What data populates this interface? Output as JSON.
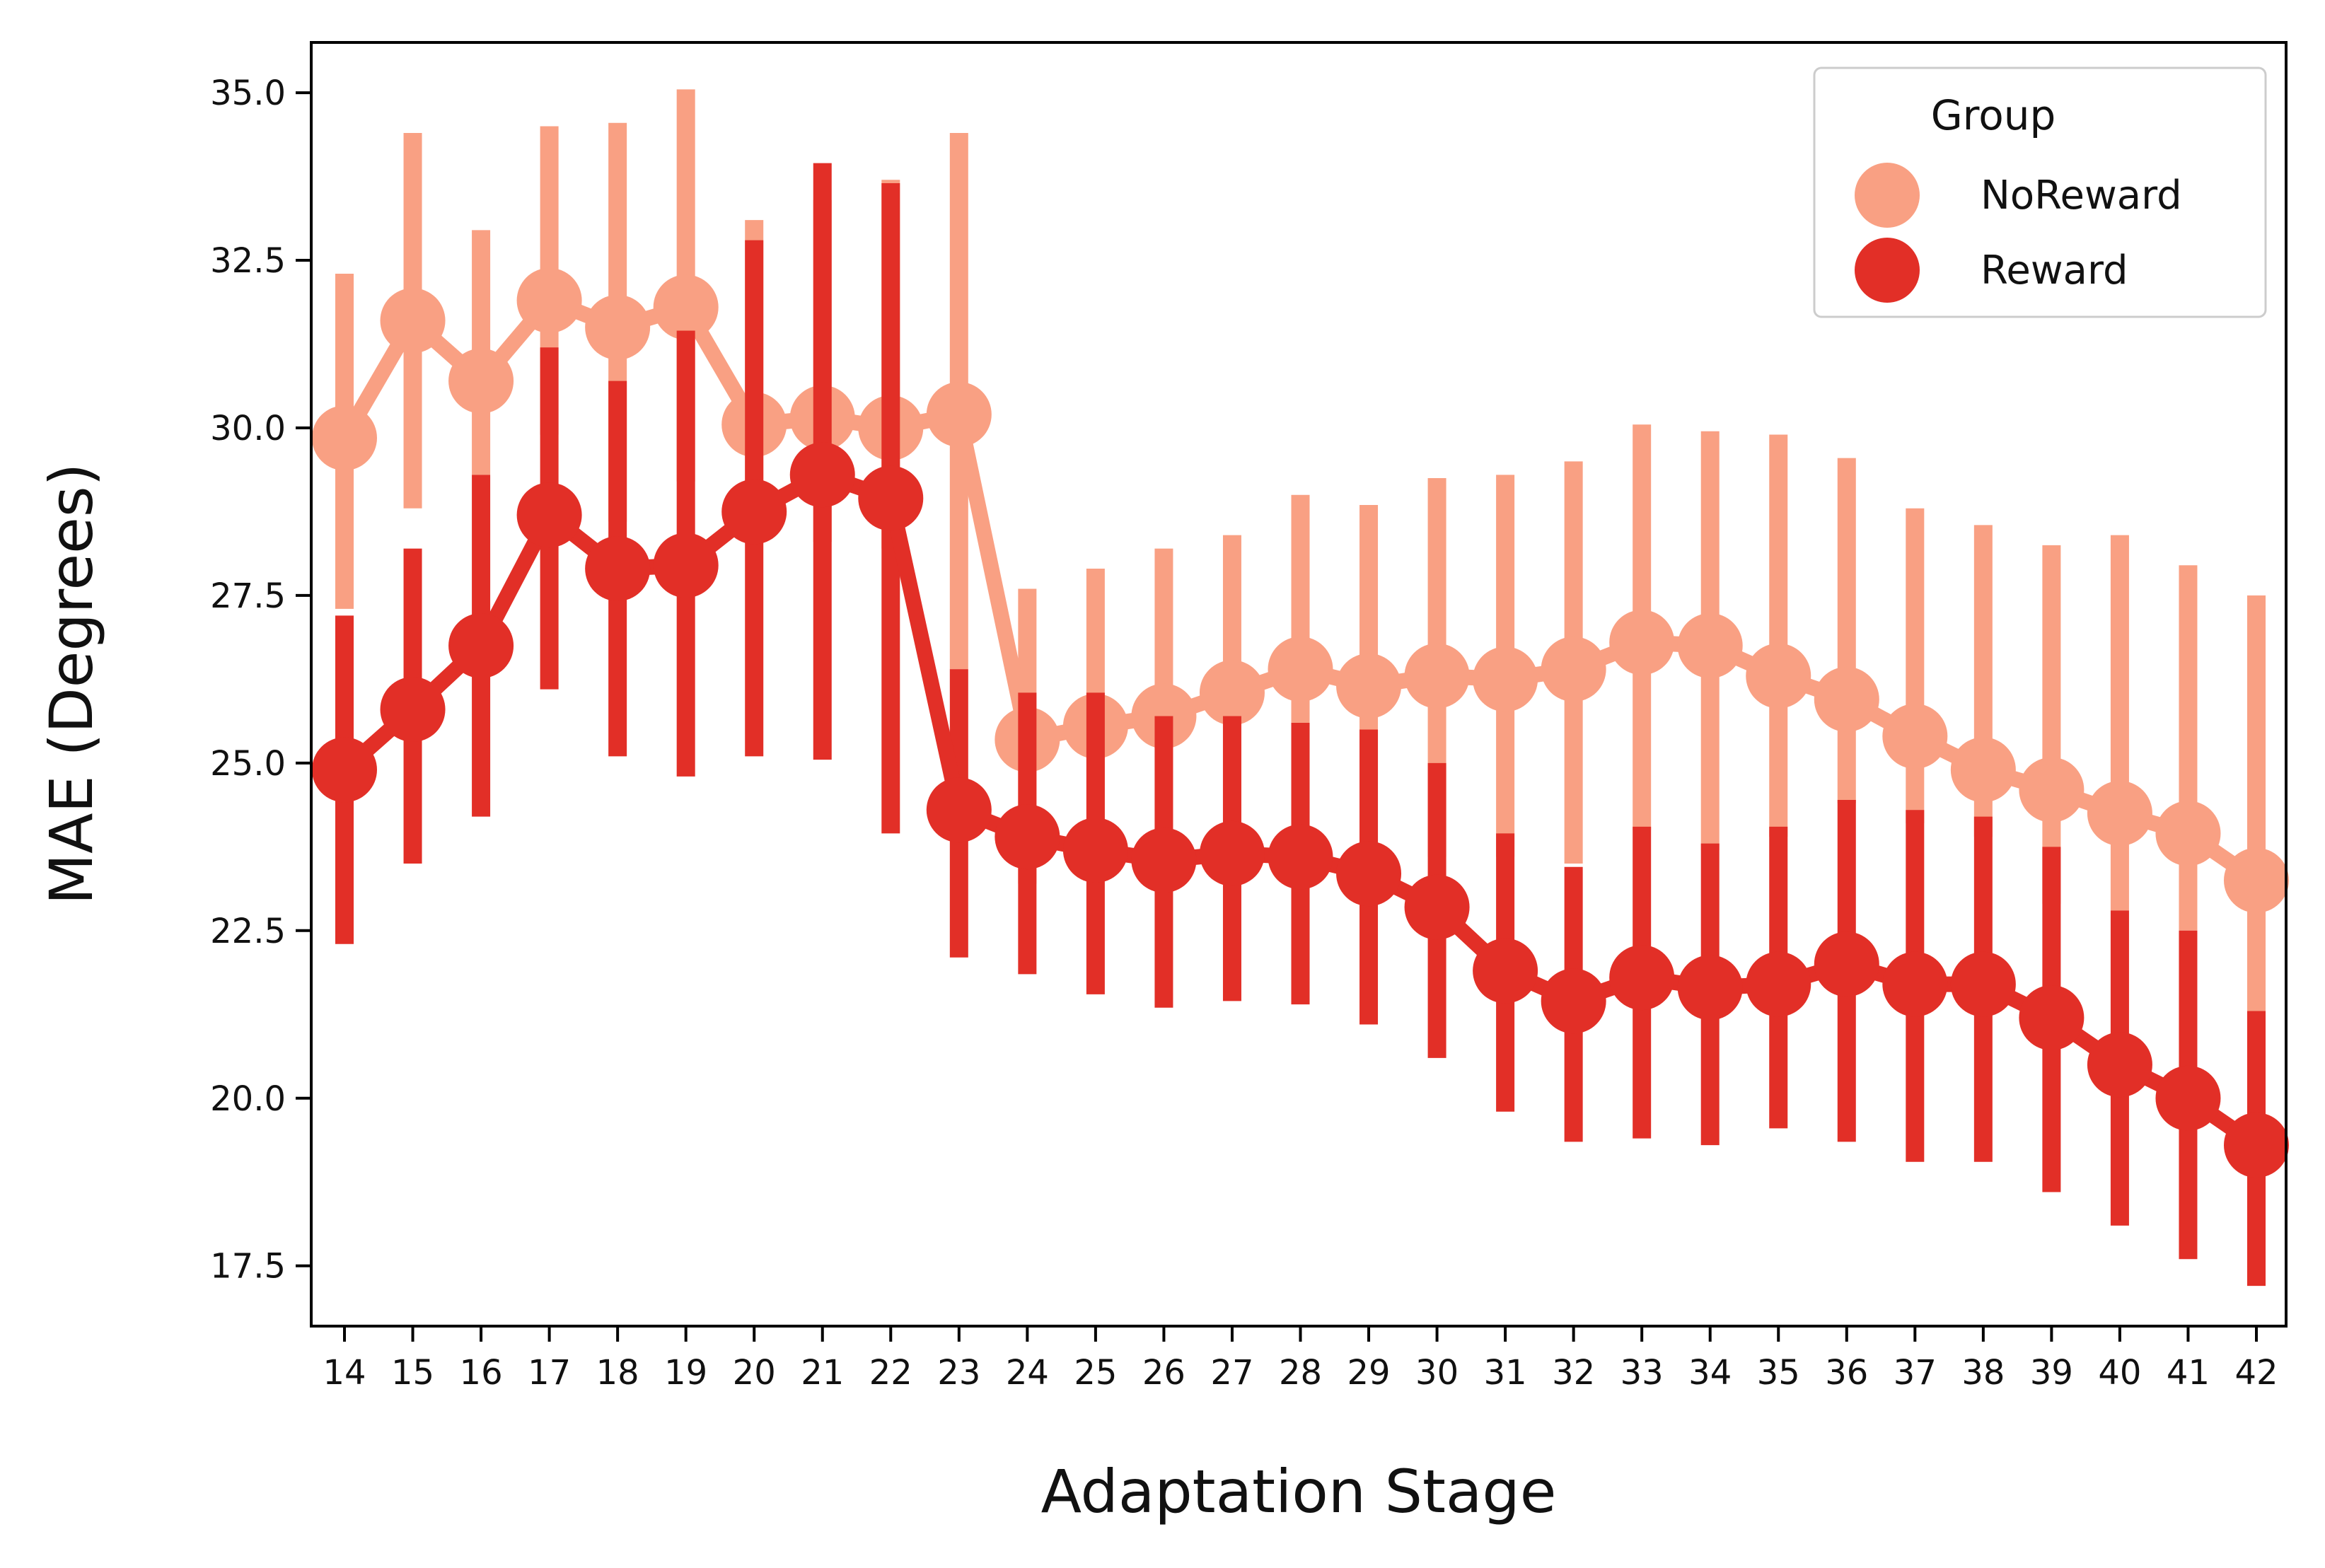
{
  "chart_data": {
    "type": "line",
    "subtype": "pointplot-with-error-bars",
    "xlabel": "Adaptation Stage",
    "ylabel": "MAE (Degrees)",
    "categories": [
      "14",
      "15",
      "16",
      "17",
      "18",
      "19",
      "20",
      "21",
      "22",
      "23",
      "24",
      "25",
      "26",
      "27",
      "28",
      "29",
      "30",
      "31",
      "32",
      "33",
      "34",
      "35",
      "36",
      "37",
      "38",
      "39",
      "40",
      "41",
      "42"
    ],
    "ylim": [
      16.6,
      35.75
    ],
    "yticks": [
      "17.5",
      "20.0",
      "22.5",
      "25.0",
      "27.5",
      "30.0",
      "32.5",
      "35.0"
    ],
    "grid": false,
    "legend": {
      "title": "Group",
      "placement": "top-right",
      "entries": [
        "NoReward",
        "Reward"
      ]
    },
    "series": [
      {
        "name": "NoReward",
        "color": "#f9a083",
        "values": [
          29.85,
          31.6,
          30.7,
          31.9,
          31.5,
          31.8,
          30.05,
          30.15,
          30.0,
          30.2,
          25.35,
          25.55,
          25.7,
          26.05,
          26.4,
          26.15,
          26.3,
          26.25,
          26.4,
          26.8,
          26.75,
          26.3,
          25.95,
          25.4,
          24.9,
          24.6,
          24.25,
          23.95,
          23.25
        ],
        "err_low": [
          27.3,
          28.8,
          29.3,
          29.9,
          28.6,
          29.2,
          28.5,
          28.3,
          28.2,
          26.4,
          23.2,
          23.4,
          23.4,
          23.6,
          23.9,
          23.8,
          23.6,
          23.6,
          23.5,
          24.0,
          23.7,
          23.9,
          24.4,
          24.1,
          23.9,
          22.9,
          22.8,
          22.5,
          21.3
        ],
        "err_high": [
          32.3,
          34.4,
          32.95,
          34.5,
          34.55,
          35.05,
          33.1,
          33.4,
          33.7,
          34.4,
          27.6,
          27.9,
          28.2,
          28.4,
          29.0,
          28.85,
          29.25,
          29.3,
          29.5,
          30.05,
          29.95,
          29.9,
          29.55,
          28.8,
          28.55,
          28.25,
          28.4,
          27.95,
          27.5
        ]
      },
      {
        "name": "Reward",
        "color": "#e22f27",
        "values": [
          24.9,
          25.8,
          26.75,
          28.7,
          27.9,
          27.95,
          28.75,
          29.3,
          28.95,
          24.3,
          23.9,
          23.7,
          23.55,
          23.65,
          23.6,
          23.35,
          22.85,
          21.9,
          21.45,
          21.8,
          21.65,
          21.7,
          22.0,
          21.7,
          21.7,
          21.2,
          20.5,
          20.0,
          19.3
        ],
        "err_low": [
          22.3,
          23.5,
          24.2,
          26.1,
          25.1,
          24.8,
          25.1,
          25.05,
          23.95,
          22.1,
          21.85,
          21.55,
          21.35,
          21.45,
          21.4,
          21.1,
          20.6,
          19.8,
          19.35,
          19.4,
          19.3,
          19.55,
          19.35,
          19.05,
          19.05,
          18.6,
          18.1,
          17.6,
          17.2
        ],
        "err_high": [
          27.2,
          28.2,
          29.3,
          31.2,
          30.7,
          31.45,
          32.8,
          33.95,
          33.65,
          26.4,
          26.05,
          26.05,
          25.7,
          25.7,
          25.6,
          25.5,
          25.0,
          23.95,
          23.45,
          24.05,
          23.8,
          24.05,
          24.45,
          24.3,
          24.2,
          23.75,
          22.8,
          22.5,
          21.3
        ]
      }
    ]
  }
}
